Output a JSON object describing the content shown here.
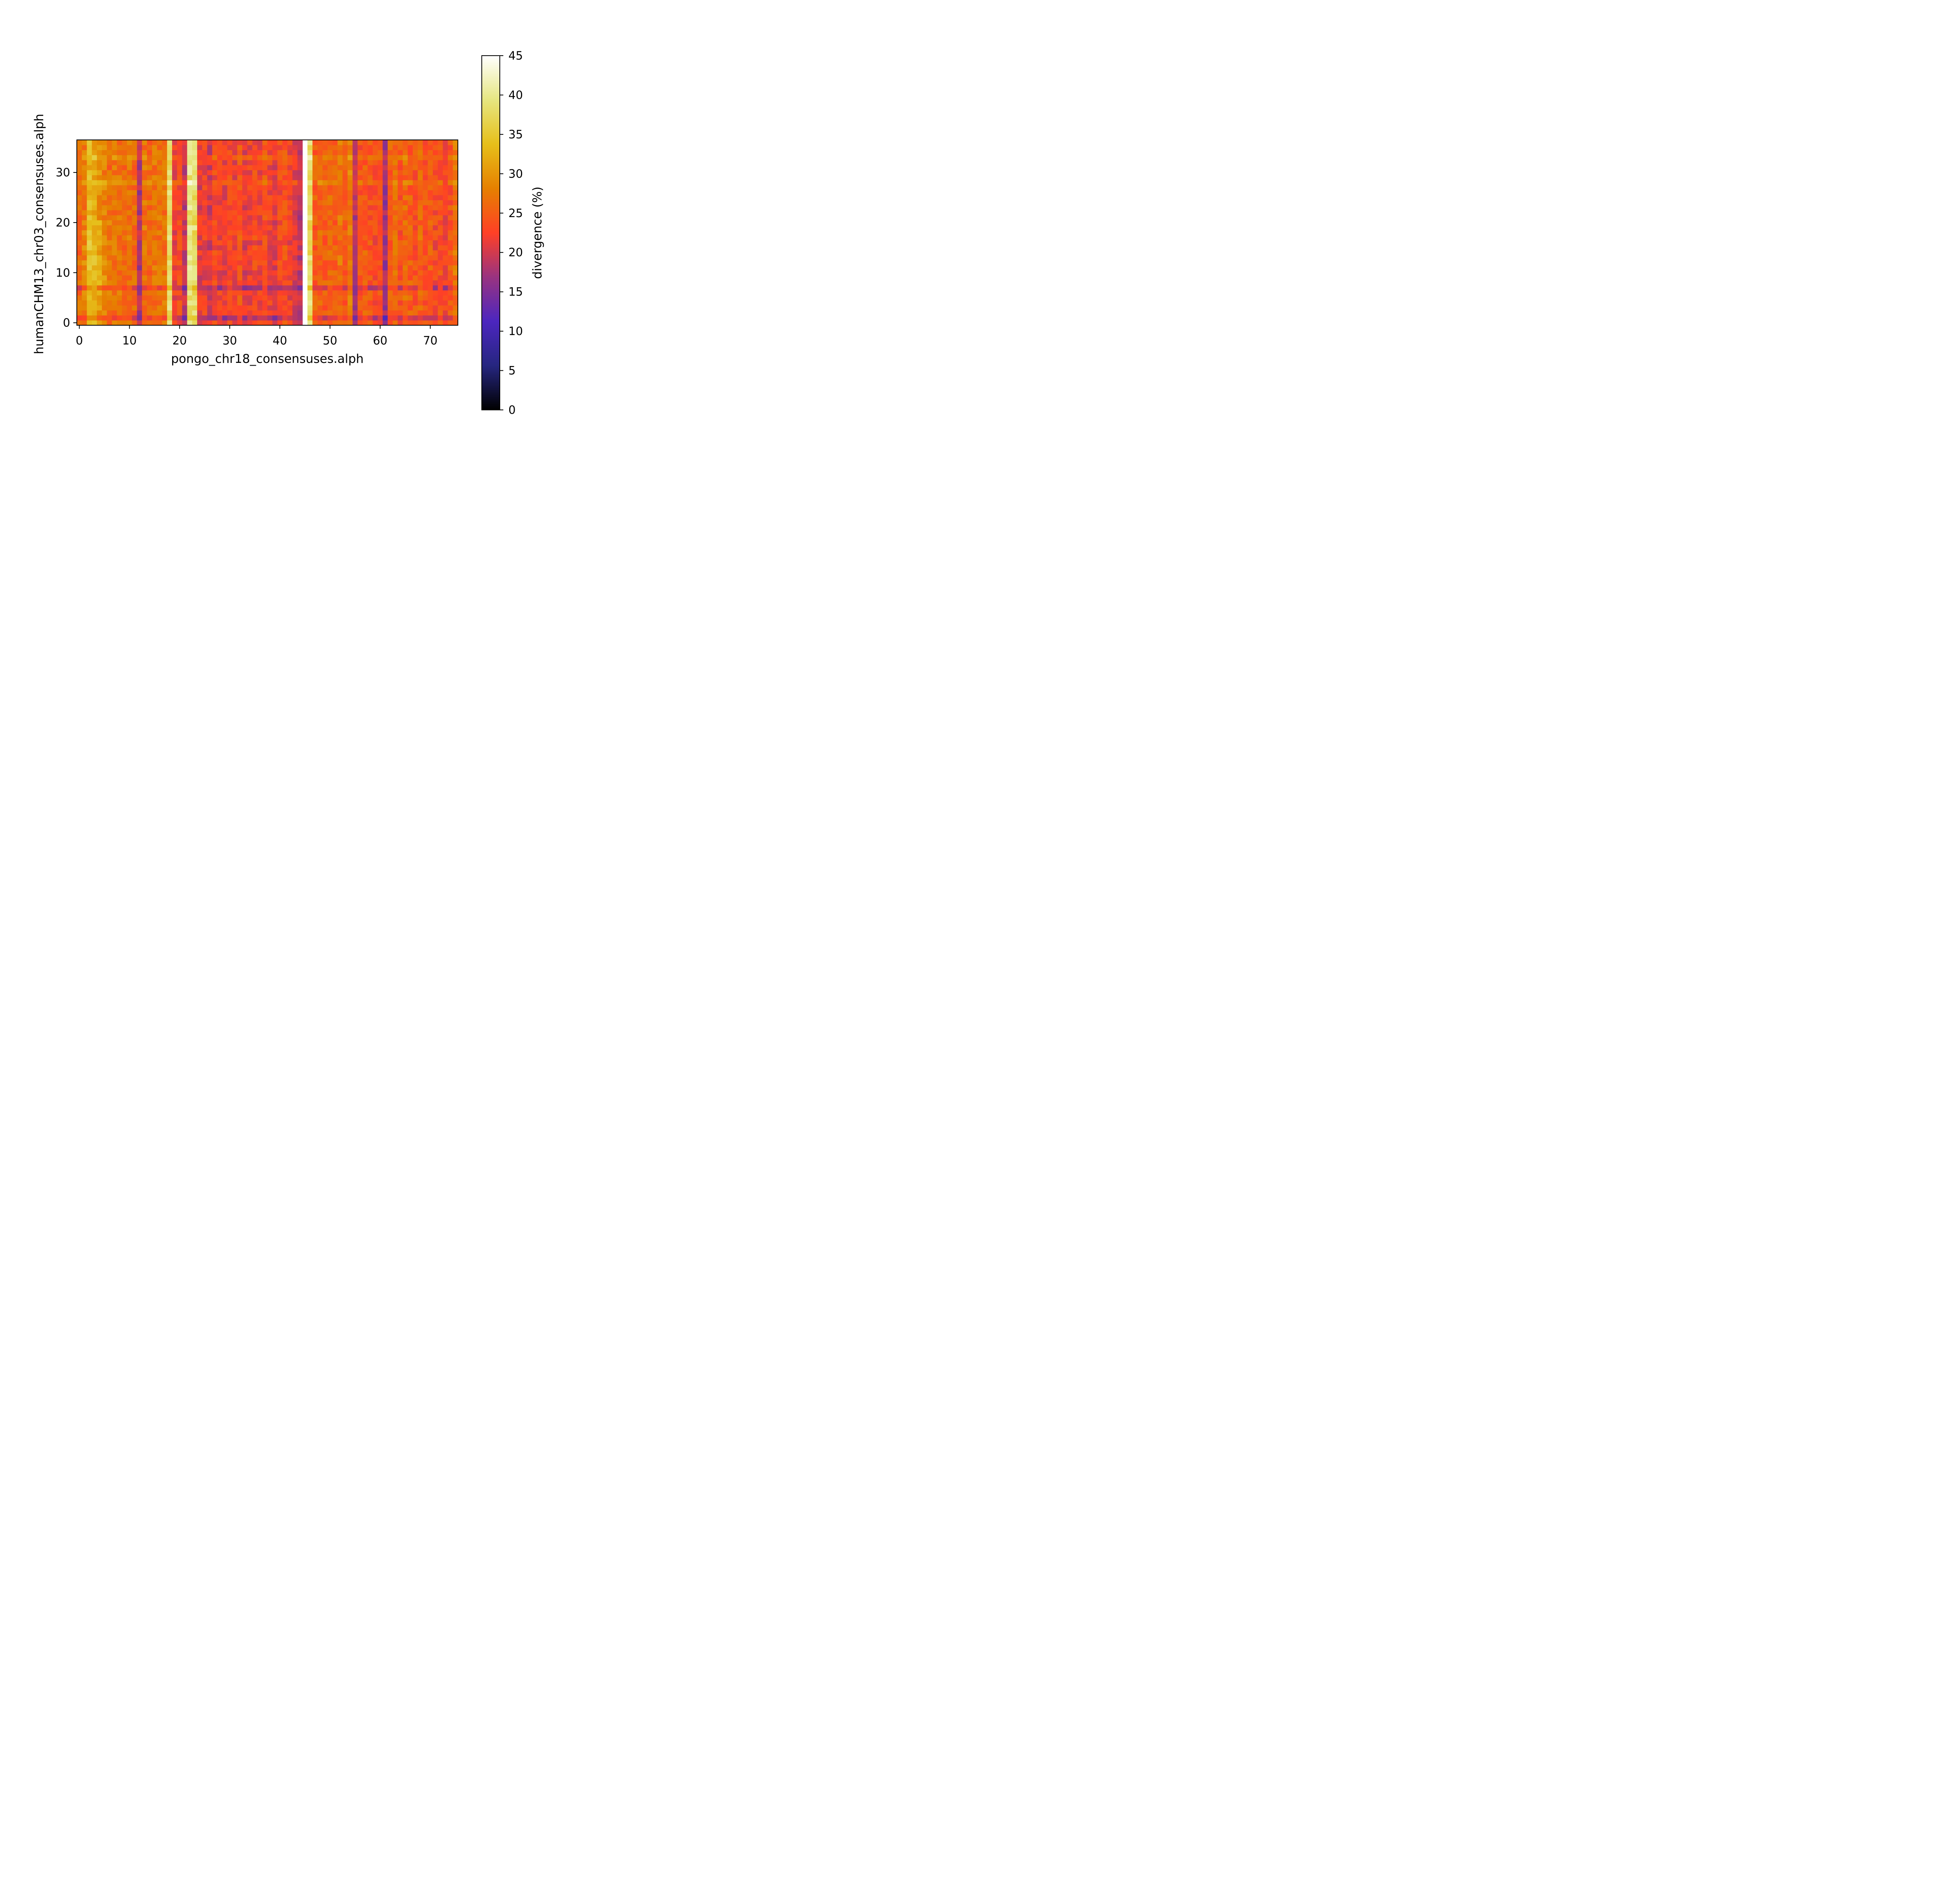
{
  "chart_data": {
    "type": "heatmap",
    "title": "",
    "xlabel": "pongo_chr18_consensuses.alph",
    "ylabel": "humanCHM13_chr03_consensuses.alph",
    "x_count": 76,
    "y_count": 37,
    "xlim": [
      -0.5,
      75.5
    ],
    "ylim": [
      -0.5,
      36.5
    ],
    "x_ticks": [
      0,
      10,
      20,
      30,
      40,
      50,
      60,
      70
    ],
    "x_tick_labels": [
      "0",
      "10",
      "20",
      "30",
      "40",
      "50",
      "60",
      "70"
    ],
    "y_ticks": [
      0,
      10,
      20,
      30
    ],
    "y_tick_labels": [
      "0",
      "10",
      "20",
      "30"
    ],
    "grid": false,
    "colorbar": {
      "label": "divergence (%)",
      "colormap": "CMRmap",
      "min": 0,
      "max": 45,
      "ticks": [
        0,
        5,
        10,
        15,
        20,
        25,
        30,
        35,
        40,
        45
      ],
      "tick_labels": [
        "0",
        "5",
        "10",
        "15",
        "20",
        "25",
        "30",
        "35",
        "40",
        "45"
      ]
    },
    "approximate_structure": {
      "typical_divergence_pct": 24,
      "column_means_pct": [
        26,
        27,
        33,
        32,
        30,
        28,
        26,
        27,
        27,
        26,
        27,
        26,
        18,
        27,
        26,
        27,
        27,
        27,
        38,
        22,
        23,
        19,
        39,
        38,
        21,
        22,
        20,
        23,
        22,
        21,
        23,
        22,
        24,
        21,
        22,
        23,
        22,
        24,
        22,
        21,
        23,
        24,
        22,
        21,
        19,
        null,
        38,
        25,
        26,
        25,
        26,
        25,
        27,
        25,
        28,
        18,
        24,
        25,
        24,
        23,
        24,
        17,
        25,
        26,
        24,
        26,
        25,
        24,
        26,
        24,
        25,
        23,
        24,
        22,
        24,
        27
      ],
      "missing_column": 45,
      "low_divergence_rows": [
        1,
        7
      ],
      "high_divergence_rows": [
        28,
        33
      ]
    }
  }
}
